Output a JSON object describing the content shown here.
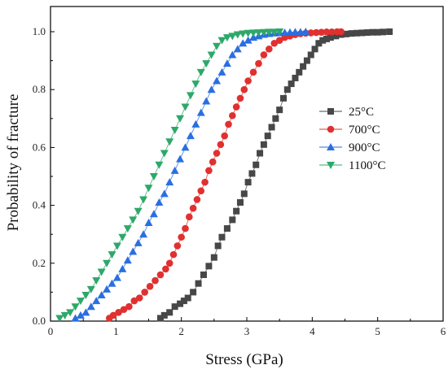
{
  "chart_data": {
    "type": "line",
    "title": "",
    "xlabel": "Stress (GPa)",
    "ylabel": "Probability of fracture",
    "xlim": [
      0,
      6
    ],
    "ylim": [
      0,
      1.05
    ],
    "xticks": [
      "0",
      "1",
      "2",
      "3",
      "4",
      "5",
      "6"
    ],
    "yticks": [
      "0.0",
      "0.2",
      "0.4",
      "0.6",
      "0.8",
      "1.0"
    ],
    "legend_position": "center-right",
    "grid": false,
    "series": [
      {
        "name": "25°C",
        "color": "#474747",
        "marker": "square",
        "x": [
          1.68,
          1.74,
          1.82,
          1.9,
          1.98,
          2.04,
          2.1,
          2.18,
          2.26,
          2.34,
          2.42,
          2.5,
          2.56,
          2.62,
          2.7,
          2.78,
          2.84,
          2.9,
          2.96,
          3.02,
          3.08,
          3.14,
          3.2,
          3.26,
          3.32,
          3.38,
          3.44,
          3.5,
          3.56,
          3.62,
          3.68,
          3.74,
          3.8,
          3.86,
          3.92,
          3.98,
          4.04,
          4.1,
          4.16,
          4.22,
          4.28,
          4.36,
          4.44,
          4.52,
          4.6,
          4.68,
          4.76,
          4.84,
          4.92,
          5.0,
          5.08,
          5.18
        ],
        "y": [
          0.01,
          0.02,
          0.03,
          0.05,
          0.06,
          0.07,
          0.08,
          0.1,
          0.13,
          0.16,
          0.19,
          0.22,
          0.26,
          0.29,
          0.32,
          0.35,
          0.38,
          0.41,
          0.44,
          0.48,
          0.51,
          0.54,
          0.58,
          0.61,
          0.64,
          0.67,
          0.7,
          0.73,
          0.77,
          0.8,
          0.82,
          0.84,
          0.86,
          0.88,
          0.9,
          0.92,
          0.94,
          0.96,
          0.97,
          0.975,
          0.98,
          0.985,
          0.99,
          0.992,
          0.994,
          0.995,
          0.996,
          0.997,
          0.998,
          0.998,
          0.999,
          1.0
        ]
      },
      {
        "name": "700°C",
        "color": "#e03030",
        "marker": "circle",
        "x": [
          0.9,
          0.96,
          1.04,
          1.12,
          1.2,
          1.28,
          1.36,
          1.44,
          1.52,
          1.6,
          1.68,
          1.76,
          1.82,
          1.88,
          1.94,
          2.0,
          2.06,
          2.12,
          2.18,
          2.24,
          2.3,
          2.36,
          2.42,
          2.48,
          2.54,
          2.6,
          2.66,
          2.72,
          2.78,
          2.84,
          2.9,
          2.96,
          3.02,
          3.1,
          3.18,
          3.26,
          3.34,
          3.42,
          3.5,
          3.58,
          3.66,
          3.74,
          3.82,
          3.9,
          3.98,
          4.06,
          4.14,
          4.22,
          4.3,
          4.38,
          4.44
        ],
        "y": [
          0.01,
          0.02,
          0.03,
          0.04,
          0.05,
          0.07,
          0.08,
          0.1,
          0.12,
          0.14,
          0.16,
          0.18,
          0.2,
          0.23,
          0.26,
          0.29,
          0.32,
          0.36,
          0.39,
          0.42,
          0.45,
          0.48,
          0.52,
          0.55,
          0.58,
          0.61,
          0.64,
          0.68,
          0.71,
          0.74,
          0.77,
          0.8,
          0.83,
          0.86,
          0.89,
          0.92,
          0.94,
          0.96,
          0.97,
          0.98,
          0.985,
          0.99,
          0.993,
          0.995,
          0.996,
          0.997,
          0.998,
          0.999,
          0.999,
          1.0,
          1.0
        ]
      },
      {
        "name": "900°C",
        "color": "#2a6fe0",
        "marker": "triangle-up",
        "x": [
          0.38,
          0.46,
          0.54,
          0.62,
          0.7,
          0.78,
          0.86,
          0.94,
          1.02,
          1.1,
          1.18,
          1.26,
          1.34,
          1.42,
          1.5,
          1.58,
          1.66,
          1.74,
          1.82,
          1.9,
          1.98,
          2.06,
          2.14,
          2.22,
          2.3,
          2.38,
          2.46,
          2.54,
          2.62,
          2.7,
          2.78,
          2.86,
          2.94,
          3.02,
          3.1,
          3.18,
          3.26,
          3.34,
          3.42,
          3.5,
          3.58,
          3.66,
          3.74,
          3.82,
          3.9
        ],
        "y": [
          0.01,
          0.02,
          0.03,
          0.05,
          0.07,
          0.09,
          0.11,
          0.13,
          0.15,
          0.18,
          0.21,
          0.24,
          0.27,
          0.3,
          0.34,
          0.37,
          0.41,
          0.44,
          0.48,
          0.52,
          0.56,
          0.6,
          0.64,
          0.68,
          0.72,
          0.76,
          0.8,
          0.83,
          0.86,
          0.89,
          0.92,
          0.94,
          0.96,
          0.97,
          0.98,
          0.985,
          0.99,
          0.993,
          0.995,
          0.996,
          0.997,
          0.998,
          0.999,
          0.999,
          1.0
        ]
      },
      {
        "name": "1100°C",
        "color": "#2ea86a",
        "marker": "triangle-down",
        "x": [
          0.14,
          0.22,
          0.3,
          0.38,
          0.46,
          0.54,
          0.62,
          0.7,
          0.78,
          0.86,
          0.94,
          1.02,
          1.1,
          1.18,
          1.26,
          1.34,
          1.42,
          1.5,
          1.58,
          1.66,
          1.74,
          1.82,
          1.9,
          1.98,
          2.06,
          2.14,
          2.22,
          2.3,
          2.38,
          2.46,
          2.54,
          2.62,
          2.7,
          2.78,
          2.86,
          2.94,
          3.02,
          3.1,
          3.18,
          3.26,
          3.34,
          3.42,
          3.5
        ],
        "y": [
          0.01,
          0.02,
          0.03,
          0.05,
          0.07,
          0.09,
          0.11,
          0.14,
          0.17,
          0.2,
          0.23,
          0.26,
          0.29,
          0.32,
          0.35,
          0.38,
          0.42,
          0.46,
          0.5,
          0.54,
          0.58,
          0.62,
          0.66,
          0.7,
          0.74,
          0.78,
          0.82,
          0.86,
          0.89,
          0.92,
          0.95,
          0.97,
          0.98,
          0.985,
          0.99,
          0.993,
          0.995,
          0.996,
          0.997,
          0.998,
          0.999,
          0.999,
          1.0
        ]
      }
    ]
  }
}
